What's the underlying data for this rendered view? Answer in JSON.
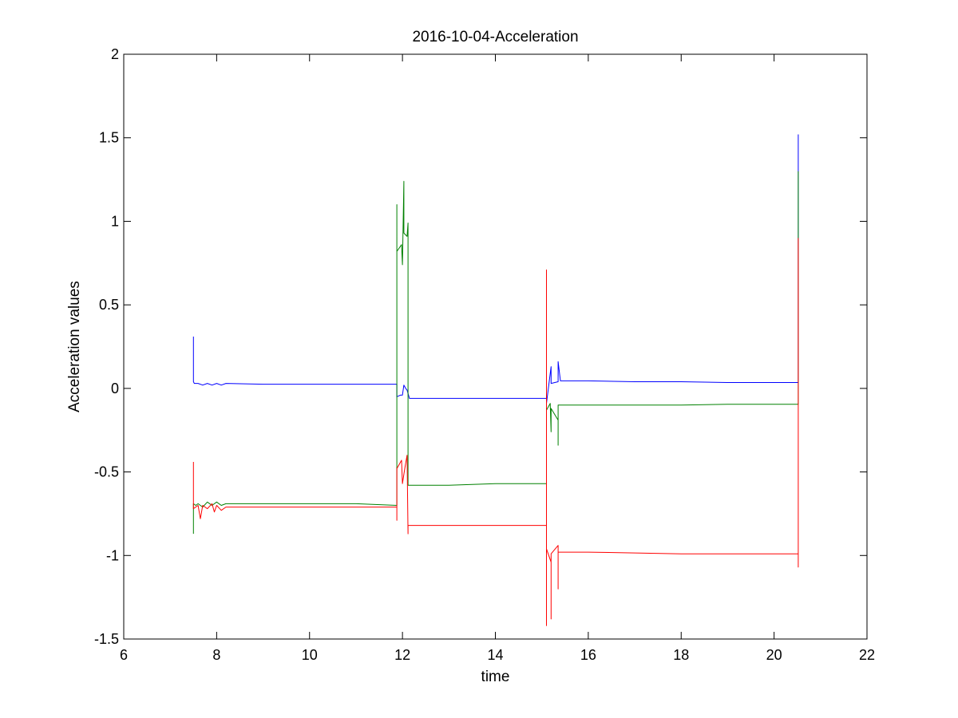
{
  "chart_data": {
    "type": "line",
    "title": "2016-10-04-Acceleration",
    "xlabel": "time",
    "ylabel": "Acceleration values",
    "xlim": [
      6,
      22
    ],
    "ylim": [
      -1.5,
      2
    ],
    "xticks": [
      "6",
      "8",
      "10",
      "12",
      "14",
      "16",
      "18",
      "20",
      "22"
    ],
    "yticks": [
      "-1.5",
      "-1",
      "-0.5",
      "0",
      "0.5",
      "1",
      "1.5",
      "2"
    ],
    "grid": false,
    "legend": "none",
    "series": [
      {
        "color": "#0000ff",
        "points": [
          [
            7.5,
            0.31
          ],
          [
            7.5,
            0.04
          ],
          [
            7.52,
            0.03
          ],
          [
            7.6,
            0.03
          ],
          [
            7.7,
            0.02
          ],
          [
            7.8,
            0.03
          ],
          [
            7.9,
            0.02
          ],
          [
            8.0,
            0.03
          ],
          [
            8.1,
            0.02
          ],
          [
            8.2,
            0.03
          ],
          [
            9.0,
            0.025
          ],
          [
            10.0,
            0.025
          ],
          [
            11.0,
            0.025
          ],
          [
            11.88,
            0.025
          ],
          [
            11.88,
            -0.05
          ],
          [
            11.96,
            -0.04
          ],
          [
            12.0,
            -0.04
          ],
          [
            12.03,
            0.02
          ],
          [
            12.07,
            0.0
          ],
          [
            12.1,
            -0.01
          ],
          [
            12.15,
            -0.06
          ],
          [
            13.0,
            -0.06
          ],
          [
            14.0,
            -0.06
          ],
          [
            15.1,
            -0.06
          ],
          [
            15.1,
            -0.09
          ],
          [
            15.15,
            0.02
          ],
          [
            15.2,
            0.13
          ],
          [
            15.2,
            0.03
          ],
          [
            15.35,
            0.04
          ],
          [
            15.35,
            0.16
          ],
          [
            15.4,
            0.045
          ],
          [
            16.0,
            0.045
          ],
          [
            17.0,
            0.04
          ],
          [
            18.0,
            0.04
          ],
          [
            19.0,
            0.035
          ],
          [
            20.52,
            0.035
          ],
          [
            20.52,
            1.52
          ]
        ]
      },
      {
        "color": "#008000",
        "points": [
          [
            7.5,
            -0.87
          ],
          [
            7.5,
            -0.69
          ],
          [
            7.55,
            -0.7
          ],
          [
            7.6,
            -0.69
          ],
          [
            7.7,
            -0.71
          ],
          [
            7.8,
            -0.68
          ],
          [
            7.9,
            -0.7
          ],
          [
            8.0,
            -0.68
          ],
          [
            8.1,
            -0.7
          ],
          [
            8.2,
            -0.69
          ],
          [
            9.0,
            -0.69
          ],
          [
            10.0,
            -0.69
          ],
          [
            11.0,
            -0.69
          ],
          [
            11.88,
            -0.7
          ],
          [
            11.88,
            1.1
          ],
          [
            11.88,
            0.82
          ],
          [
            11.98,
            0.86
          ],
          [
            12.0,
            0.74
          ],
          [
            12.03,
            1.24
          ],
          [
            12.03,
            0.93
          ],
          [
            12.1,
            0.91
          ],
          [
            12.12,
            0.99
          ],
          [
            12.12,
            -0.58
          ],
          [
            13.0,
            -0.58
          ],
          [
            14.0,
            -0.57
          ],
          [
            15.1,
            -0.57
          ],
          [
            15.1,
            -0.13
          ],
          [
            15.18,
            -0.09
          ],
          [
            15.2,
            -0.26
          ],
          [
            15.2,
            -0.12
          ],
          [
            15.35,
            -0.19
          ],
          [
            15.35,
            -0.34
          ],
          [
            15.35,
            -0.1
          ],
          [
            16.0,
            -0.1
          ],
          [
            17.0,
            -0.1
          ],
          [
            18.0,
            -0.1
          ],
          [
            19.0,
            -0.095
          ],
          [
            20.52,
            -0.095
          ],
          [
            20.52,
            1.3
          ]
        ]
      },
      {
        "color": "#ff0000",
        "points": [
          [
            7.5,
            -0.44
          ],
          [
            7.5,
            -0.72
          ],
          [
            7.6,
            -0.7
          ],
          [
            7.65,
            -0.78
          ],
          [
            7.7,
            -0.7
          ],
          [
            7.8,
            -0.72
          ],
          [
            7.9,
            -0.69
          ],
          [
            7.95,
            -0.74
          ],
          [
            8.0,
            -0.7
          ],
          [
            8.1,
            -0.73
          ],
          [
            8.2,
            -0.71
          ],
          [
            9.0,
            -0.71
          ],
          [
            10.0,
            -0.71
          ],
          [
            11.0,
            -0.71
          ],
          [
            11.88,
            -0.71
          ],
          [
            11.88,
            -0.79
          ],
          [
            11.88,
            -0.48
          ],
          [
            11.98,
            -0.43
          ],
          [
            12.0,
            -0.57
          ],
          [
            12.05,
            -0.48
          ],
          [
            12.1,
            -0.4
          ],
          [
            12.12,
            -0.87
          ],
          [
            12.12,
            -0.82
          ],
          [
            13.0,
            -0.82
          ],
          [
            14.0,
            -0.82
          ],
          [
            15.1,
            -0.82
          ],
          [
            15.1,
            0.71
          ],
          [
            15.1,
            -1.42
          ],
          [
            15.1,
            -0.96
          ],
          [
            15.2,
            -1.04
          ],
          [
            15.2,
            -1.38
          ],
          [
            15.2,
            -0.99
          ],
          [
            15.35,
            -0.94
          ],
          [
            15.35,
            -1.2
          ],
          [
            15.35,
            -0.98
          ],
          [
            16.0,
            -0.98
          ],
          [
            17.0,
            -0.985
          ],
          [
            18.0,
            -0.99
          ],
          [
            19.0,
            -0.99
          ],
          [
            20.52,
            -0.99
          ],
          [
            20.52,
            -1.07
          ],
          [
            20.52,
            0.9
          ]
        ]
      }
    ]
  }
}
